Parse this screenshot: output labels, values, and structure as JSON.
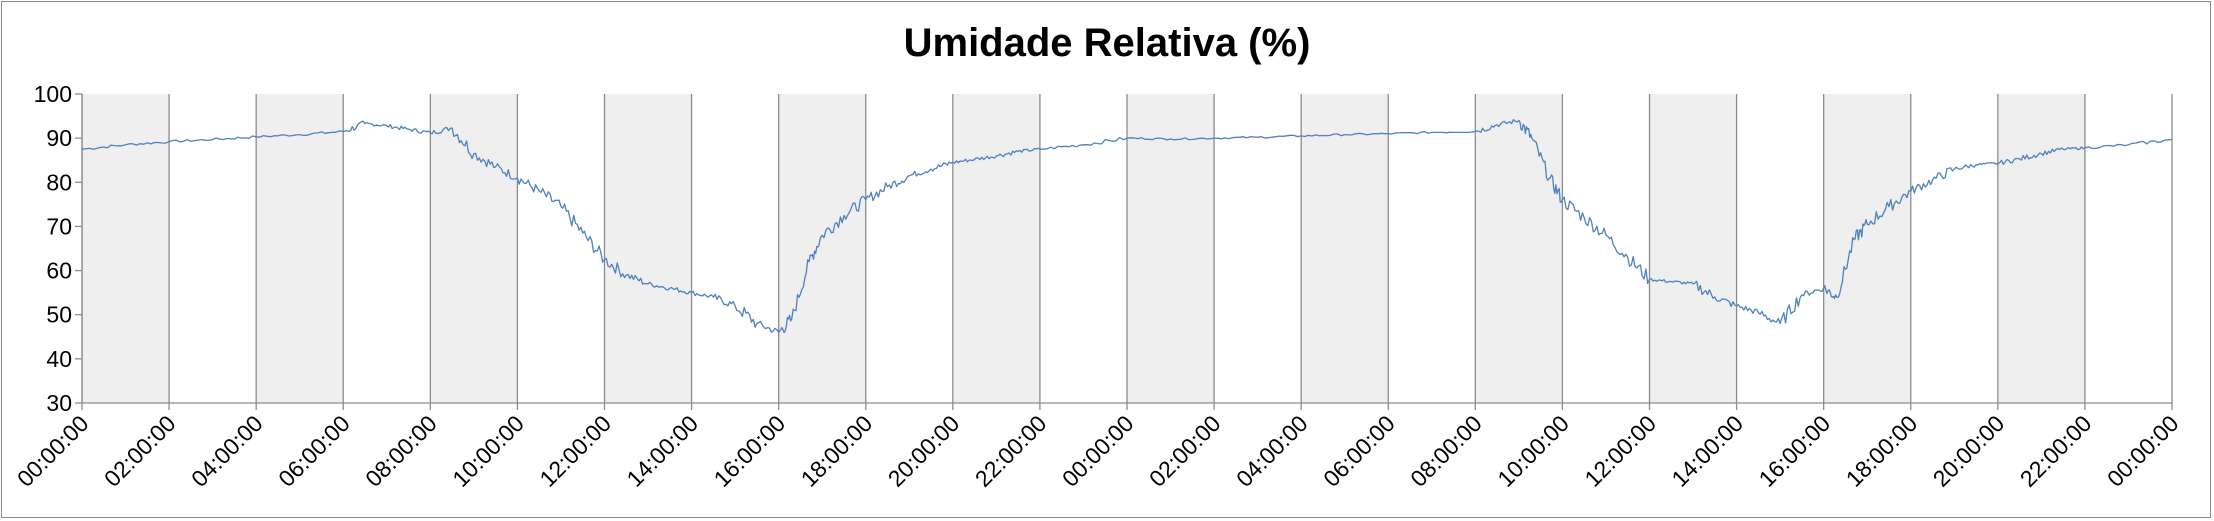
{
  "chart_data": {
    "type": "line",
    "title": "Umidade Relativa (%)",
    "xlabel": "",
    "ylabel": "",
    "ylim": [
      30,
      100
    ],
    "yticks": [
      "30",
      "40",
      "50",
      "60",
      "70",
      "80",
      "90",
      "100"
    ],
    "x_tick_labels": [
      "00:00:00",
      "02:00:00",
      "04:00:00",
      "06:00:00",
      "08:00:00",
      "10:00:00",
      "12:00:00",
      "14:00:00",
      "16:00:00",
      "18:00:00",
      "20:00:00",
      "22:00:00",
      "00:00:00",
      "02:00:00",
      "04:00:00",
      "06:00:00",
      "08:00:00",
      "10:00:00",
      "12:00:00",
      "14:00:00",
      "16:00:00",
      "18:00:00",
      "20:00:00",
      "22:00:00",
      "00:00:00"
    ],
    "x_unit": "hours since first 00:00:00 tick",
    "shaded_bands_hours": [
      [
        0,
        2
      ],
      [
        4,
        6
      ],
      [
        8,
        10
      ],
      [
        12,
        14
      ],
      [
        16,
        18
      ],
      [
        20,
        22
      ],
      [
        24,
        26
      ],
      [
        28,
        30
      ],
      [
        32,
        34
      ],
      [
        36,
        38
      ],
      [
        40,
        42
      ],
      [
        44,
        46
      ]
    ],
    "band_color": "#efefef",
    "grid": "vertical lines at each x tick",
    "legend": "none",
    "series": [
      {
        "color": "#4f81bd",
        "x": [
          0,
          1,
          2,
          3,
          4,
          5,
          6,
          6.5,
          7,
          7.5,
          8,
          8.5,
          9,
          9.5,
          10,
          10.5,
          11,
          11.5,
          12,
          12.5,
          13,
          13.5,
          14,
          14.5,
          15,
          15.5,
          16,
          16.3,
          16.7,
          17,
          17.5,
          18,
          18.5,
          19,
          19.5,
          20,
          20.5,
          21,
          21.5,
          22,
          23,
          24,
          25,
          26,
          27,
          28,
          29,
          30,
          31,
          32,
          32.5,
          33,
          33.3,
          33.7,
          34,
          34.5,
          35,
          35.5,
          36,
          36.5,
          37,
          37.5,
          38,
          38.5,
          39,
          39.5,
          40,
          40.3,
          40.7,
          41,
          41.5,
          42,
          42.5,
          43,
          43.5,
          44,
          44.5,
          45,
          45.5,
          46,
          47,
          48
        ],
        "y": [
          87.5,
          88.5,
          89.2,
          89.7,
          90.3,
          90.8,
          91.5,
          93.3,
          92.8,
          92,
          91.2,
          92.3,
          86.5,
          83.5,
          81,
          78,
          74.5,
          68.5,
          62.5,
          59,
          57,
          56,
          55,
          54,
          52,
          48,
          46,
          49,
          62,
          68,
          72.5,
          76,
          79,
          81.5,
          83,
          84.5,
          85.2,
          86,
          87,
          87.5,
          88.5,
          90,
          89.8,
          90,
          90.2,
          90.5,
          90.8,
          91,
          91.3,
          91.5,
          93,
          94,
          90,
          81,
          76,
          72,
          68,
          63,
          58,
          57.5,
          57,
          54,
          52,
          50.5,
          48,
          54.5,
          56,
          54,
          67,
          70.5,
          74.5,
          78,
          80.5,
          83,
          84,
          84.3,
          85.3,
          86.5,
          87.5,
          87.8,
          88.5,
          89.7
        ]
      }
    ]
  }
}
